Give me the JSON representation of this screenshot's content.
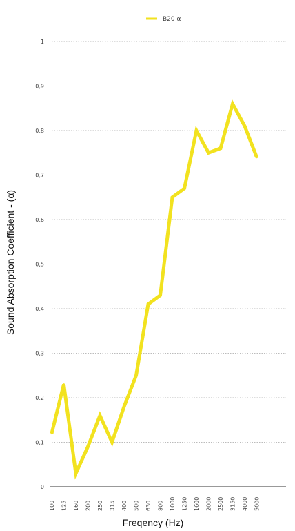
{
  "chart_data": {
    "type": "line",
    "title": "",
    "xlabel": "Freqency (Hz)",
    "ylabel": "Sound Absorption Coefficient - (α)",
    "categories": [
      "100",
      "125",
      "160",
      "200",
      "250",
      "315",
      "400",
      "500",
      "630",
      "800",
      "1000",
      "1250",
      "1600",
      "2000",
      "2500",
      "3150",
      "4000",
      "5000"
    ],
    "y_tick_labels": [
      "0",
      "0,1",
      "0,2",
      "0,3",
      "0,4",
      "0,5",
      "0,6",
      "0,7",
      "0,8",
      "0,9",
      "1"
    ],
    "ylim": [
      0,
      1
    ],
    "grid": "horizontal dotted",
    "legend_position": "top-center",
    "series": [
      {
        "name": "B20 α",
        "color": "#f2e21f",
        "values": [
          0.12,
          0.23,
          0.03,
          0.09,
          0.16,
          0.1,
          0.18,
          0.25,
          0.41,
          0.43,
          0.65,
          0.67,
          0.8,
          0.75,
          0.76,
          0.86,
          0.81,
          0.74
        ]
      }
    ]
  }
}
